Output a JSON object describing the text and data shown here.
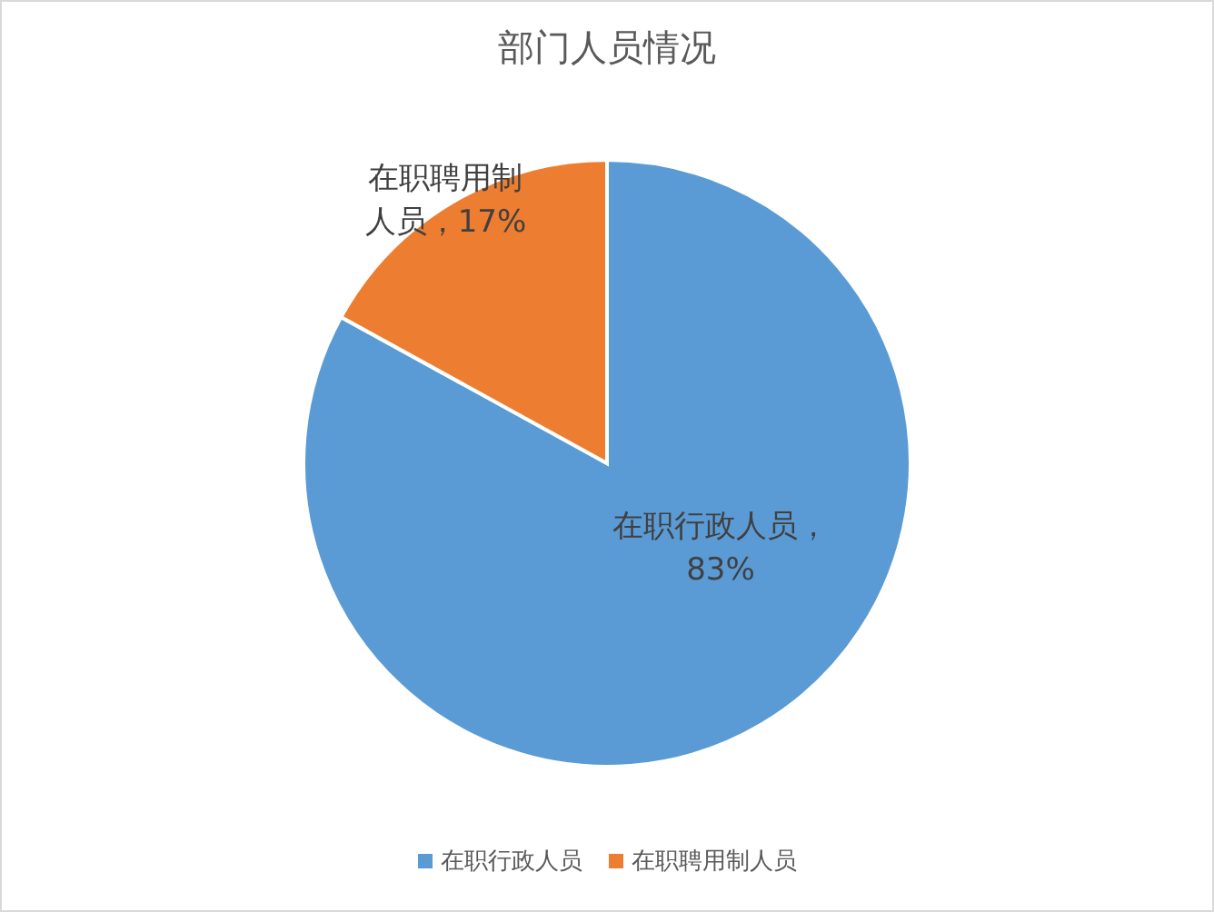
{
  "chart_data": {
    "type": "pie",
    "title": "部门人员情况",
    "categories": [
      "在职行政人员",
      "在职聘用制人员"
    ],
    "values": [
      83,
      17
    ],
    "colors": [
      "#5b9bd5",
      "#ed7d31"
    ],
    "value_labels": [
      "在职行政人员，83%",
      "在职聘用制人员，17%"
    ],
    "legend": "bottom"
  }
}
